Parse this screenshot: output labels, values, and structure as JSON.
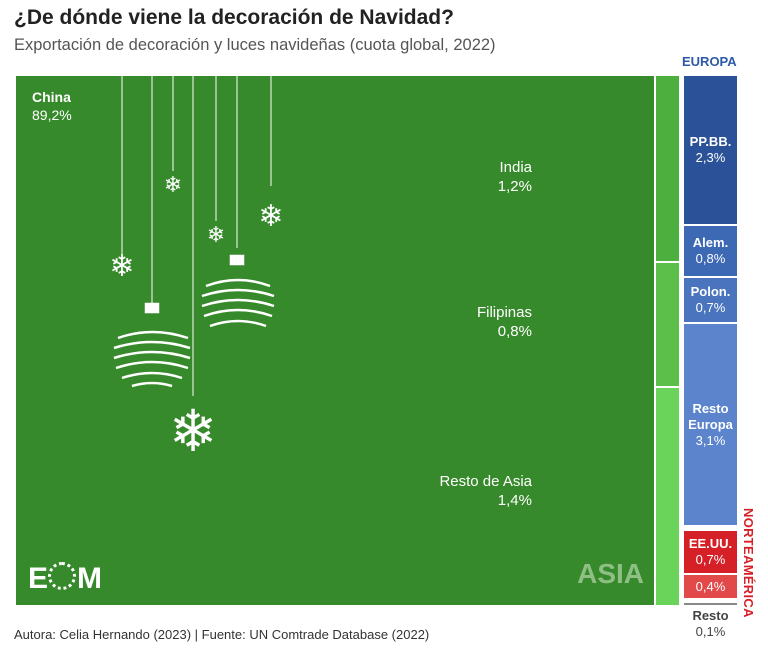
{
  "title": "¿De dónde viene la decoración de Navidad?",
  "subtitle": "Exportación de decoración y luces navideñas (cuota global, 2022)",
  "footer": "Autora: Celia Hernando (2023) | Fuente: UN Comtrade Database (2022)",
  "logo": "EOM",
  "colors": {
    "china": "#378a2b",
    "india": "#4caf3e",
    "filipinas": "#5cbf4a",
    "resto_asia": "#6ad35a",
    "ppbb": "#2b5298",
    "alem": "#3d68b3",
    "polon": "#4a74bd",
    "resto_europa": "#5b84cc",
    "eeuu": "#d62027",
    "na_other": "#e24a4a"
  },
  "chart_data": {
    "type": "treemap",
    "title": "¿De dónde viene la decoración de Navidad?",
    "subtitle": "Exportación de decoración y luces navideñas (cuota global, 2022)",
    "groups": [
      {
        "name": "ASIA",
        "items": [
          {
            "label": "China",
            "value_label": "89,2%",
            "value": 89.2
          },
          {
            "label": "India",
            "value_label": "1,2%",
            "value": 1.2
          },
          {
            "label": "Filipinas",
            "value_label": "0,8%",
            "value": 0.8
          },
          {
            "label": "Resto de Asia",
            "value_label": "1,4%",
            "value": 1.4
          }
        ]
      },
      {
        "name": "EUROPA",
        "items": [
          {
            "label": "PP.BB.",
            "value_label": "2,3%",
            "value": 2.3
          },
          {
            "label": "Alem.",
            "value_label": "0,8%",
            "value": 0.8
          },
          {
            "label": "Polon.",
            "value_label": "0,7%",
            "value": 0.7
          },
          {
            "label": "Resto Europa",
            "value_label": "3,1%",
            "value": 3.1
          }
        ]
      },
      {
        "name": "NORTEAMÉRICA",
        "items": [
          {
            "label": "EE.UU.",
            "value_label": "0,7%",
            "value": 0.7
          },
          {
            "label": "",
            "value_label": "0,4%",
            "value": 0.4
          }
        ]
      },
      {
        "name": "",
        "items": [
          {
            "label": "Resto",
            "value_label": "0,1%",
            "value": 0.1
          }
        ]
      }
    ]
  }
}
